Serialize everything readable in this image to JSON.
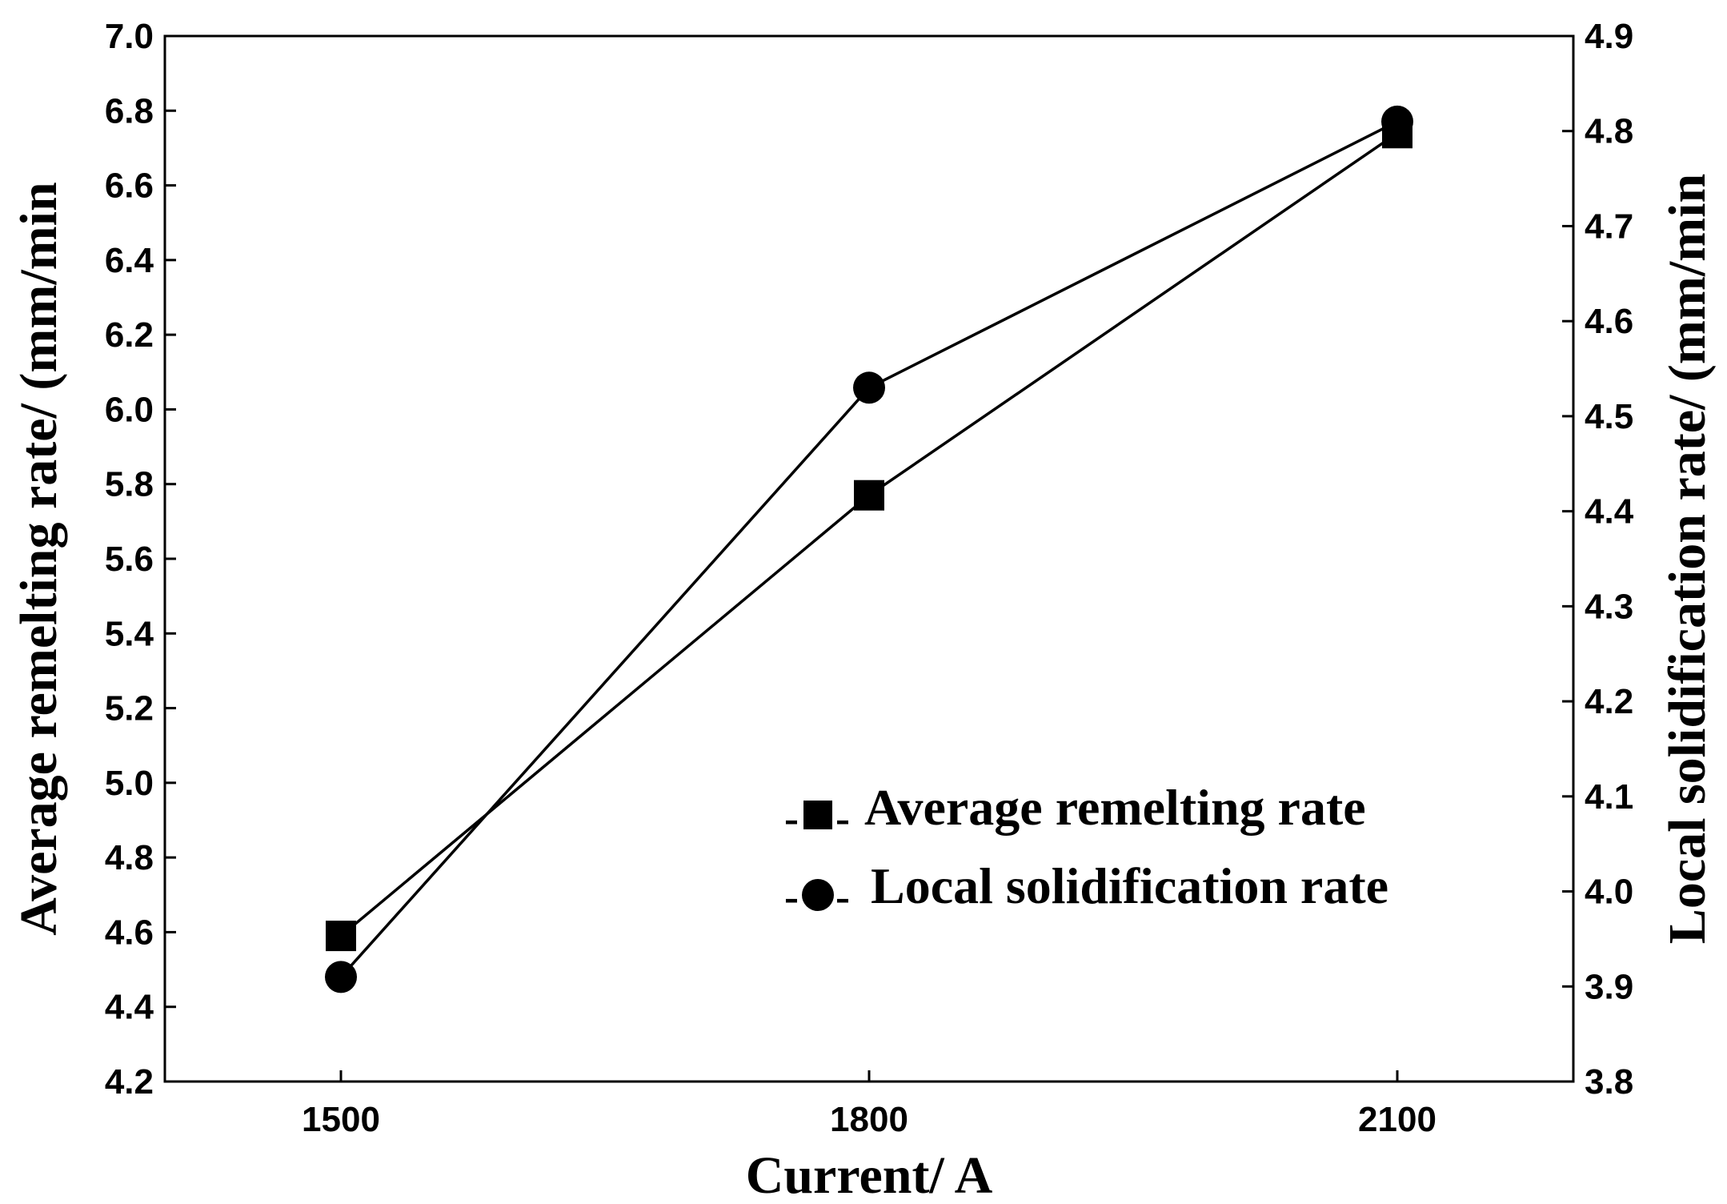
{
  "chart_data": {
    "type": "line",
    "title": "",
    "x": [
      1500,
      1800,
      2100
    ],
    "xlabel": "Current/ A",
    "xlim": [
      1400,
      2200
    ],
    "xticks": [
      "1500",
      "1800",
      "2100"
    ],
    "ylabel": "Average remelting rate/ (mm/min",
    "ylim": [
      4.2,
      7.0
    ],
    "yticks": [
      "4.2",
      "4.4",
      "4.6",
      "4.8",
      "5.0",
      "5.2",
      "5.4",
      "5.6",
      "5.8",
      "6.0",
      "6.2",
      "6.4",
      "6.6",
      "6.8",
      "7.0"
    ],
    "y2label": "Local solidification rate/ (mm/min",
    "y2lim": [
      3.8,
      4.9
    ],
    "y2ticks": [
      "3.8",
      "3.9",
      "4.0",
      "4.1",
      "4.2",
      "4.3",
      "4.4",
      "4.5",
      "4.6",
      "4.7",
      "4.8",
      "4.9"
    ],
    "series": [
      {
        "name": "Average remelting rate",
        "axis": "left",
        "marker": "square",
        "values": [
          4.59,
          5.77,
          6.74
        ]
      },
      {
        "name": "Local solidification rate",
        "axis": "right",
        "marker": "circle",
        "values": [
          3.91,
          4.53,
          4.81
        ]
      }
    ],
    "legend": {
      "position": "bottom-right",
      "dash_left": "-",
      "dash_right": "-"
    },
    "grid": false
  }
}
